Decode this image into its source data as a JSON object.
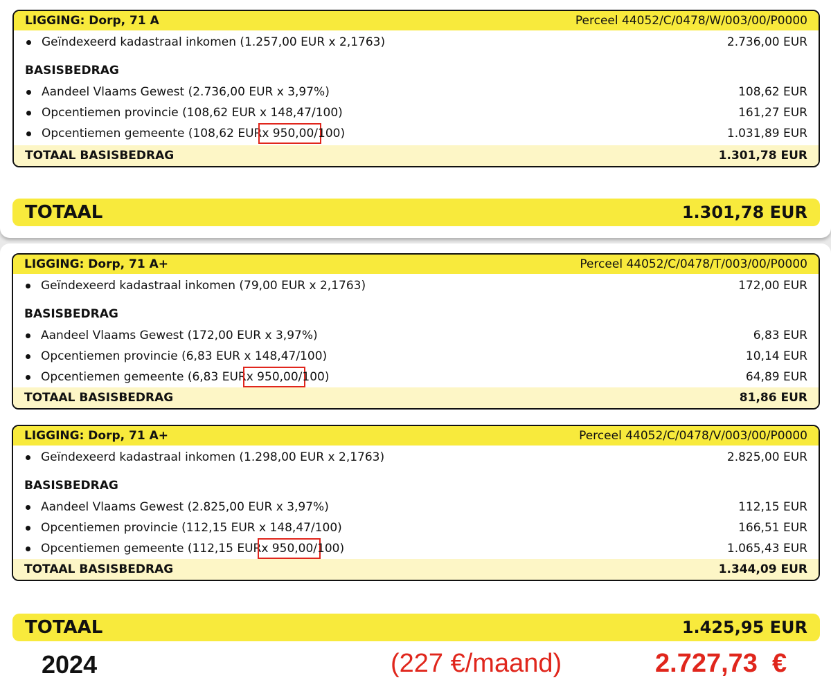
{
  "blocks": [
    {
      "location": "LIGGING: Dorp, 71 A",
      "parcel": "Perceel 44052/C/0478/W/003/00/P0000",
      "ki_label": "Geïndexeerd kadastraal inkomen (1.257,00 EUR x 2,1763)",
      "ki_value": "2.736,00 EUR",
      "section": "BASISBEDRAG",
      "vlaams_label": "Aandeel Vlaams Gewest (2.736,00 EUR x 3,97%)",
      "vlaams_value": "108,62 EUR",
      "prov_label": "Opcentiemen provincie (108,62 EUR x 148,47/100)",
      "prov_value": "161,27 EUR",
      "gem_pre": "Opcentiemen gemeente (108,62 EUR",
      "gem_mark": " x 950,00/",
      "gem_post": "100)",
      "gem_value": "1.031,89 EUR",
      "total_label": "TOTAAL BASISBEDRAG",
      "total_value": "1.301,78 EUR"
    },
    {
      "location": "LIGGING: Dorp, 71 A+",
      "parcel": "Perceel 44052/C/0478/T/003/00/P0000",
      "ki_label": "Geïndexeerd kadastraal inkomen (79,00 EUR x 2,1763)",
      "ki_value": "172,00 EUR",
      "section": "BASISBEDRAG",
      "vlaams_label": "Aandeel Vlaams Gewest (172,00 EUR x 3,97%)",
      "vlaams_value": "6,83 EUR",
      "prov_label": "Opcentiemen provincie (6,83 EUR x 148,47/100)",
      "prov_value": "10,14 EUR",
      "gem_pre": "Opcentiemen gemeente (6,83 EUR",
      "gem_mark": " x 950,00/",
      "gem_post": "100)",
      "gem_value": "64,89 EUR",
      "total_label": "TOTAAL BASISBEDRAG",
      "total_value": "81,86 EUR"
    },
    {
      "location": "LIGGING: Dorp, 71 A+",
      "parcel": "Perceel 44052/C/0478/V/003/00/P0000",
      "ki_label": "Geïndexeerd kadastraal inkomen (1.298,00 EUR x 2,1763)",
      "ki_value": "2.825,00 EUR",
      "section": "BASISBEDRAG",
      "vlaams_label": "Aandeel Vlaams Gewest (2.825,00 EUR x 3,97%)",
      "vlaams_value": "112,15 EUR",
      "prov_label": "Opcentiemen provincie (112,15 EUR x 148,47/100)",
      "prov_value": "166,51 EUR",
      "gem_pre": "Opcentiemen gemeente (112,15 EUR",
      "gem_mark": " x 950,00/",
      "gem_post": "100)",
      "gem_value": "1.065,43 EUR",
      "total_label": "TOTAAL BASISBEDRAG",
      "total_value": "1.344,09 EUR"
    }
  ],
  "totals": {
    "top_label": "TOTAAL",
    "top_value": "1.301,78 EUR",
    "bottom_label": "TOTAAL",
    "bottom_value": "1.425,95 EUR"
  },
  "annotation": {
    "year": "2024",
    "monthly": "(227 €/maand)",
    "yearly": "2.727,73  €"
  },
  "colors": {
    "yellow": "#f8ea3c",
    "light_yellow": "#fdf6c6",
    "red": "#e0261c"
  }
}
